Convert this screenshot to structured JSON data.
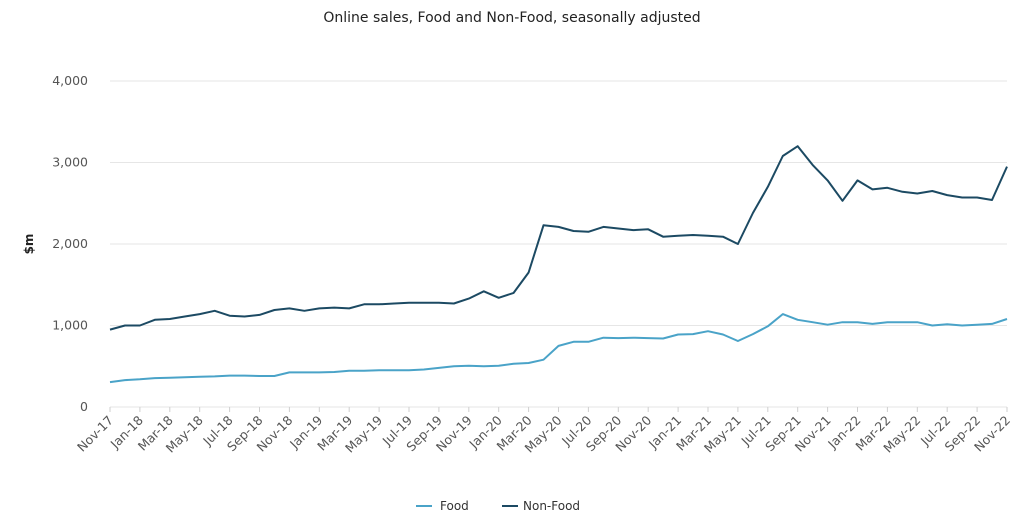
{
  "chart_data": {
    "type": "line",
    "title": "Online sales, Food and Non-Food, seasonally adjusted",
    "xlabel": "",
    "ylabel": "$m",
    "ylim": [
      0,
      4000
    ],
    "yticks": [
      "0",
      "1,000",
      "2,000",
      "3,000",
      "4,000"
    ],
    "ytick_values": [
      0,
      1000,
      2000,
      3000,
      4000
    ],
    "x": [
      "Nov-17",
      "Dec-17",
      "Jan-18",
      "Feb-18",
      "Mar-18",
      "Apr-18",
      "May-18",
      "Jun-18",
      "Jul-18",
      "Aug-18",
      "Sep-18",
      "Oct-18",
      "Nov-18",
      "Dec-18",
      "Jan-19",
      "Feb-19",
      "Mar-19",
      "Apr-19",
      "May-19",
      "Jun-19",
      "Jul-19",
      "Aug-19",
      "Sep-19",
      "Oct-19",
      "Nov-19",
      "Dec-19",
      "Jan-20",
      "Feb-20",
      "Mar-20",
      "Apr-20",
      "May-20",
      "Jun-20",
      "Jul-20",
      "Aug-20",
      "Sep-20",
      "Oct-20",
      "Nov-20",
      "Dec-20",
      "Jan-21",
      "Feb-21",
      "Mar-21",
      "Apr-21",
      "May-21",
      "Jun-21",
      "Jul-21",
      "Aug-21",
      "Sep-21",
      "Oct-21",
      "Nov-21",
      "Dec-21",
      "Jan-22",
      "Feb-22",
      "Mar-22",
      "Apr-22",
      "May-22",
      "Jun-22",
      "Jul-22",
      "Aug-22",
      "Sep-22",
      "Oct-22",
      "Nov-22"
    ],
    "xtick_labels": [
      "Nov-17",
      "Jan-18",
      "Mar-18",
      "May-18",
      "Jul-18",
      "Sep-18",
      "Nov-18",
      "Jan-19",
      "Mar-19",
      "May-19",
      "Jul-19",
      "Sep-19",
      "Nov-19",
      "Jan-20",
      "Mar-20",
      "May-20",
      "Jul-20",
      "Sep-20",
      "Nov-20",
      "Jan-21",
      "Mar-21",
      "May-21",
      "Jul-21",
      "Sep-21",
      "Nov-21",
      "Jan-22",
      "Mar-22",
      "May-22",
      "Jul-22",
      "Sep-22",
      "Nov-22"
    ],
    "grid": "horizontal",
    "legend_position": "bottom",
    "series": [
      {
        "name": "Food",
        "color": "#4aa3c8",
        "values": [
          305,
          330,
          340,
          355,
          360,
          365,
          370,
          375,
          385,
          385,
          380,
          380,
          425,
          425,
          425,
          430,
          445,
          445,
          450,
          450,
          450,
          460,
          480,
          500,
          505,
          500,
          505,
          530,
          540,
          580,
          750,
          800,
          800,
          850,
          845,
          850,
          845,
          840,
          890,
          895,
          930,
          890,
          810,
          895,
          990,
          1140,
          1070,
          1040,
          1010,
          1040,
          1040,
          1020,
          1040,
          1040,
          1040,
          1000,
          1015,
          1000,
          1010,
          1020,
          1080
        ]
      },
      {
        "name": "Non-Food",
        "color": "#1c4a63",
        "values": [
          950,
          1000,
          1000,
          1070,
          1080,
          1110,
          1140,
          1180,
          1120,
          1110,
          1130,
          1190,
          1210,
          1180,
          1210,
          1220,
          1210,
          1260,
          1260,
          1270,
          1280,
          1280,
          1280,
          1270,
          1330,
          1420,
          1340,
          1400,
          1650,
          2230,
          2210,
          2160,
          2150,
          2210,
          2190,
          2170,
          2180,
          2090,
          2100,
          2110,
          2100,
          2090,
          2000,
          2380,
          2700,
          3080,
          3200,
          2970,
          2780,
          2530,
          2780,
          2670,
          2690,
          2640,
          2620,
          2650,
          2600,
          2570,
          2570,
          2540,
          2950
        ]
      }
    ]
  }
}
